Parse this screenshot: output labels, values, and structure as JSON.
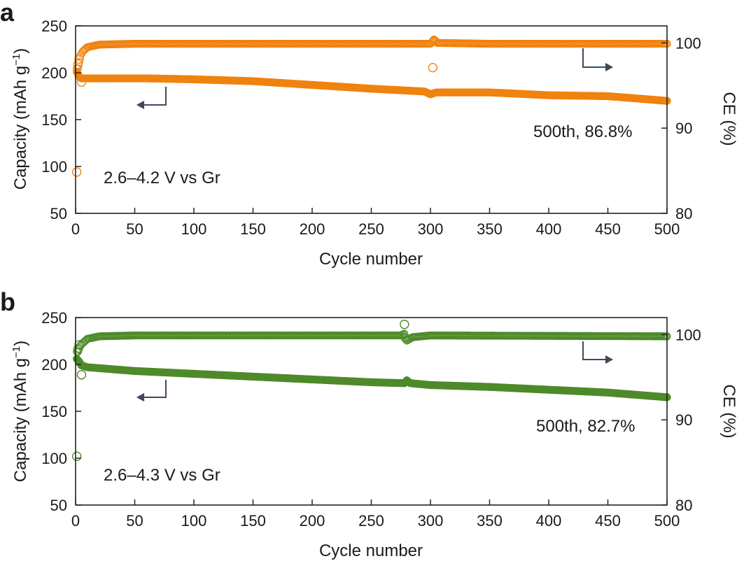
{
  "chart_data": [
    {
      "panel_label": "a",
      "type": "scatter",
      "annotation_voltage": "2.6–4.2 V vs Gr",
      "annotation_retention": "500th, 86.8%",
      "xlabel": "Cycle number",
      "ylabel_left": "Capacity (mAh g",
      "ylabel_left_sup": "−1",
      "ylabel_left_close": ")",
      "ylabel_right": "CE (%)",
      "xlim": [
        0,
        500
      ],
      "ylim_left": [
        50,
        250
      ],
      "ylim_right": [
        80,
        102
      ],
      "xticks": [
        "0",
        "50",
        "100",
        "150",
        "200",
        "250",
        "300",
        "350",
        "400",
        "450",
        "500"
      ],
      "yticks_left": [
        "50",
        "100",
        "150",
        "200",
        "250"
      ],
      "yticks_right": [
        "80",
        "90",
        "100"
      ],
      "color": "#f0820f",
      "series": [
        {
          "name": "Capacity",
          "axis": "left",
          "anchors": [
            [
              1,
              201
            ],
            [
              3,
              196
            ],
            [
              5,
              194
            ],
            [
              10,
              194
            ],
            [
              30,
              194
            ],
            [
              60,
              194
            ],
            [
              100,
              193
            ],
            [
              150,
              191
            ],
            [
              200,
              187
            ],
            [
              250,
              183
            ],
            [
              295,
              180
            ],
            [
              300,
              177
            ],
            [
              305,
              179
            ],
            [
              350,
              179
            ],
            [
              400,
              176
            ],
            [
              450,
              175
            ],
            [
              500,
              170
            ]
          ],
          "outliers": [
            [
              1,
              94
            ],
            [
              5,
              190
            ]
          ]
        },
        {
          "name": "CE",
          "axis": "right",
          "anchors": [
            [
              2,
              97
            ],
            [
              4,
              98.5
            ],
            [
              6,
              99.0
            ],
            [
              10,
              99.5
            ],
            [
              20,
              99.8
            ],
            [
              50,
              99.9
            ],
            [
              300,
              99.9
            ],
            [
              303,
              100.4
            ],
            [
              306,
              100.0
            ],
            [
              350,
              99.9
            ],
            [
              500,
              99.9
            ]
          ],
          "outliers": [
            [
              2,
              97.5
            ],
            [
              3,
              98.1
            ],
            [
              302,
              97.1
            ],
            [
              303,
              100.2
            ]
          ]
        }
      ]
    },
    {
      "panel_label": "b",
      "type": "scatter",
      "annotation_voltage": "2.6–4.3 V vs Gr",
      "annotation_retention": "500th, 82.7%",
      "xlabel": "Cycle number",
      "ylabel_left": "Capacity (mAh g",
      "ylabel_left_sup": "−1",
      "ylabel_left_close": ")",
      "ylabel_right": "CE (%)",
      "xlim": [
        0,
        500
      ],
      "ylim_left": [
        50,
        250
      ],
      "ylim_right": [
        80,
        102
      ],
      "xticks": [
        "0",
        "50",
        "100",
        "150",
        "200",
        "250",
        "300",
        "350",
        "400",
        "450",
        "500"
      ],
      "yticks_left": [
        "50",
        "100",
        "150",
        "200",
        "250"
      ],
      "yticks_right": [
        "80",
        "90",
        "100"
      ],
      "color": "#4e8a2a",
      "series": [
        {
          "name": "Capacity",
          "axis": "left",
          "anchors": [
            [
              1,
              206
            ],
            [
              3,
              203
            ],
            [
              5,
              199
            ],
            [
              10,
              197
            ],
            [
              50,
              193
            ],
            [
              100,
              190
            ],
            [
              150,
              187
            ],
            [
              200,
              184
            ],
            [
              250,
              181
            ],
            [
              278,
              180
            ],
            [
              280,
              183
            ],
            [
              283,
              180
            ],
            [
              300,
              178
            ],
            [
              350,
              176
            ],
            [
              400,
              173
            ],
            [
              450,
              170
            ],
            [
              500,
              165
            ]
          ],
          "outliers": [
            [
              1,
              102
            ],
            [
              5,
              189
            ]
          ]
        },
        {
          "name": "CE",
          "axis": "right",
          "anchors": [
            [
              2,
              98
            ],
            [
              4,
              98.7
            ],
            [
              6,
              99.0
            ],
            [
              10,
              99.5
            ],
            [
              20,
              99.8
            ],
            [
              50,
              99.9
            ],
            [
              275,
              99.9
            ],
            [
              278,
              100.1
            ],
            [
              280,
              99.3
            ],
            [
              285,
              99.7
            ],
            [
              300,
              99.9
            ],
            [
              500,
              99.8
            ]
          ],
          "outliers": [
            [
              2,
              98.3
            ],
            [
              3,
              98.8
            ],
            [
              278,
              101.2
            ],
            [
              279,
              99.6
            ]
          ]
        }
      ]
    }
  ]
}
